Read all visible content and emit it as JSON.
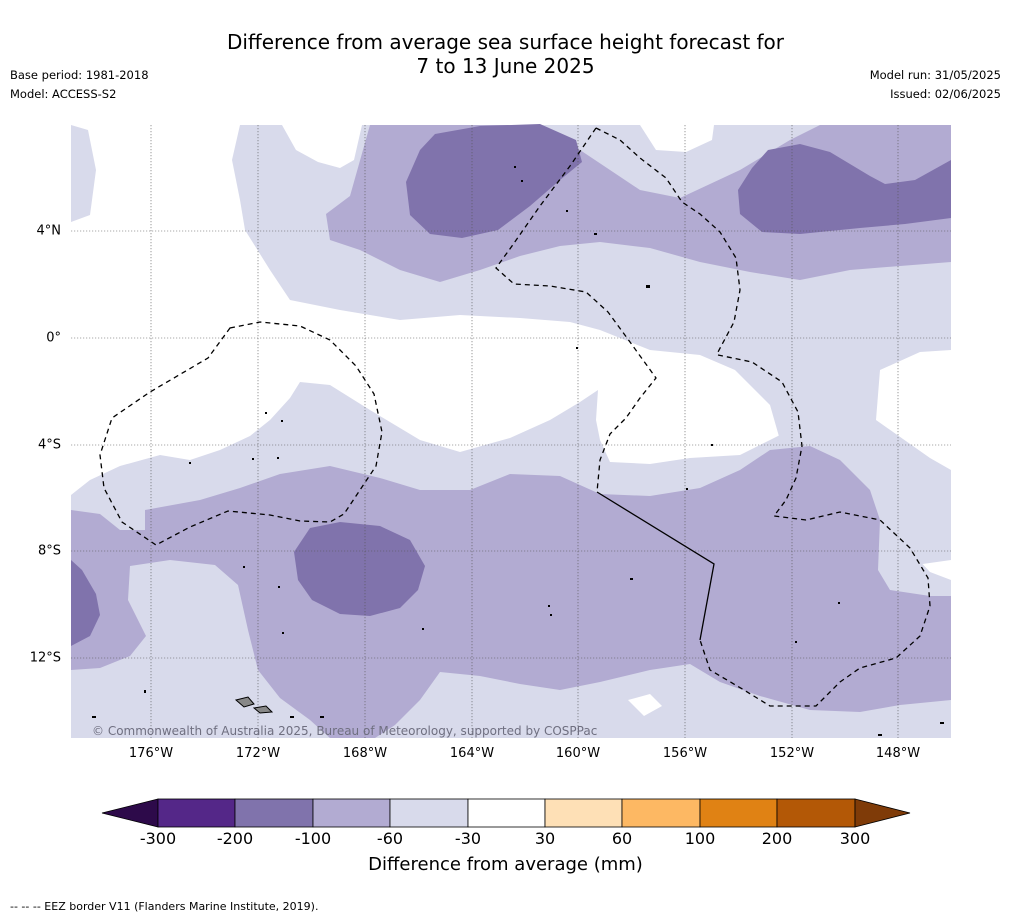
{
  "title": {
    "line1": "Difference from average sea surface height forecast for",
    "line2": "7 to 13 June 2025"
  },
  "meta": {
    "base_period": "Base period: 1981-2018",
    "model": "Model: ACCESS-S2",
    "model_run": "Model run: 31/05/2025",
    "issued": "Issued: 02/06/2025"
  },
  "map": {
    "lat_labels": [
      "4°N",
      "0°",
      "4°S",
      "8°S",
      "12°S"
    ],
    "lon_labels": [
      "176°W",
      "172°W",
      "168°W",
      "164°W",
      "160°W",
      "156°W",
      "152°W",
      "148°W"
    ],
    "copyright": "© Commonwealth of Australia 2025, Bureau of Meteorology, supported by COSPPac"
  },
  "colorbar": {
    "ticks": [
      "-300",
      "-200",
      "-100",
      "-60",
      "-30",
      "30",
      "60",
      "100",
      "200",
      "300"
    ],
    "colors": [
      "#2d0a4a",
      "#542788",
      "#8073ac",
      "#b2abd2",
      "#d8daeb",
      "#ffffff",
      "#fee0b6",
      "#fdb863",
      "#e08214",
      "#b35806",
      "#7f3b08"
    ],
    "label": "Difference from average (mm)"
  },
  "footer": "--  --  -- EEZ border V11 (Flanders Marine Institute, 2019)."
}
